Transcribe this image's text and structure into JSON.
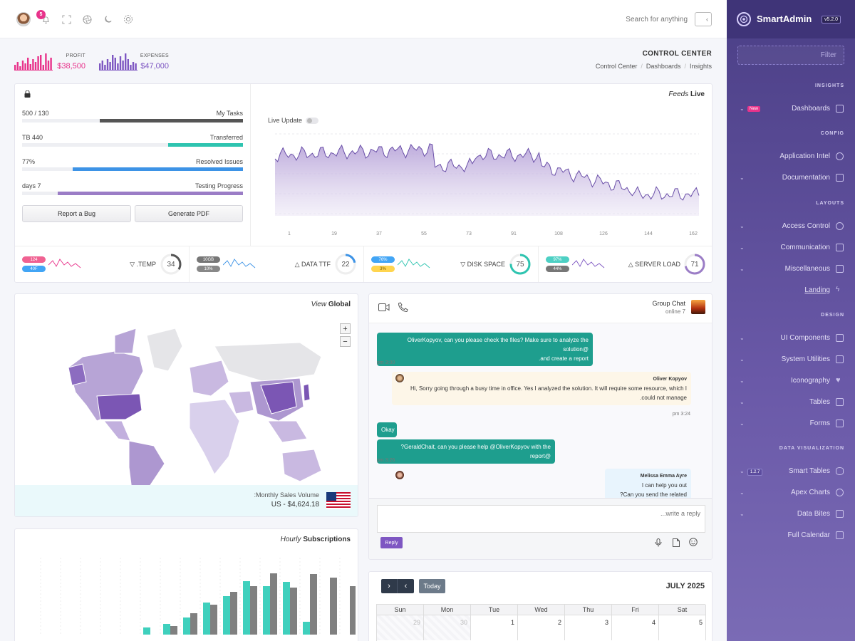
{
  "topbar": {
    "notification_count": "5",
    "search_placeholder": "Search for anything",
    "icons": [
      "bell-icon",
      "fullscreen-icon",
      "aperture-icon",
      "moon-icon",
      "gear-icon"
    ]
  },
  "header": {
    "profit": {
      "label": "PROFIT",
      "value": "$38,500",
      "color": "#e8338b"
    },
    "expenses": {
      "label": "EXPENSES",
      "value": "$47,000",
      "color": "#7e57c2"
    },
    "title": "CONTROL CENTER",
    "breadcrumbs": [
      "Control Center",
      "Dashboards",
      "Insights"
    ]
  },
  "feeds": {
    "title_italic": "Feeds",
    "title_bold": "Live",
    "live_update_label": "Live Update",
    "progress": [
      {
        "left": "500 / 130",
        "right": "My Tasks",
        "pct": 65,
        "color": "#555555"
      },
      {
        "left": "TB 440",
        "right": "Transferred",
        "pct": 34,
        "color": "#2ec4b0"
      },
      {
        "left": "77%",
        "right": "Resolved Issues",
        "pct": 77,
        "color": "#3d93e6"
      },
      {
        "left": "days 7",
        "right": "Testing Progress",
        "pct": 84,
        "color": "#9b7dc6"
      }
    ],
    "buttons": {
      "report": "Report a Bug",
      "pdf": "Generate PDF"
    },
    "x_ticks": [
      "1",
      "19",
      "37",
      "55",
      "73",
      "91",
      "108",
      "126",
      "144",
      "162"
    ]
  },
  "gauges": [
    {
      "pills": [
        {
          "text": "124",
          "color": "#f06292"
        },
        {
          "text": "40F",
          "color": "#42a5f5"
        }
      ],
      "label": ".TEMP",
      "value": "34",
      "color": "#555555",
      "spark_color": "#e8338b",
      "arrow": "▽"
    },
    {
      "pills": [
        {
          "text": "10GB",
          "color": "#777777"
        },
        {
          "text": "10%",
          "color": "#888888"
        }
      ],
      "label": "DATA TTF",
      "value": "22",
      "color": "#3d93e6",
      "spark_color": "#3d93e6",
      "arrow": "△"
    },
    {
      "pills": [
        {
          "text": "76%",
          "color": "#42a5f5"
        },
        {
          "text": "3%",
          "color": "#ffd54f"
        }
      ],
      "label": "DISK SPACE",
      "value": "75",
      "color": "#2ec4b0",
      "spark_color": "#2ec4b0",
      "arrow": "▽"
    },
    {
      "pills": [
        {
          "text": "97%",
          "color": "#4dd0c4"
        },
        {
          "text": "44%",
          "color": "#777777"
        }
      ],
      "label": "SERVER LOAD",
      "value": "71",
      "color": "#9b7dc6",
      "spark_color": "#7e57c2",
      "arrow": "△"
    }
  ],
  "map": {
    "title_italic": "View",
    "title_bold": "Global",
    "zoom_in": "+",
    "zoom_out": "−",
    "sales_label": ":Monthly Sales Volume",
    "sales_value": "US - $4,624.18"
  },
  "chat": {
    "title": "Group Chat",
    "subtitle": "online 7",
    "messages": [
      {
        "text1": "OliverKopyov, can you please check the files? Make sure to analyze the solution@",
        "text2": ".and create a report",
        "time": "pm 3:00"
      },
      {
        "name": "Oliver Kopyov",
        "text1": "Hi, Sorry going through a busy time in office. Yes I analyzed the solution. It will require some resource, which I",
        "text2": ".could not manage",
        "time": "pm 3:24"
      },
      {
        "text1": "Okay"
      },
      {
        "text1": "?GeraldChait, can you please help @OliverKopyov with the report@",
        "time": "pm 3:26"
      },
      {
        "name": "Melissa Emma Ayre",
        "text1": "I can help you out",
        "text2": "?Can you send the related files"
      }
    ],
    "reply_placeholder": "...write a reply",
    "reply_button": "Reply"
  },
  "subscriptions": {
    "title_italic": "Hourly",
    "title_bold": "Subscriptions"
  },
  "calendar": {
    "today": "Today",
    "month": "JULY 2025",
    "days": [
      "Sun",
      "Mon",
      "Tue",
      "Wed",
      "Thu",
      "Fri",
      "Sat"
    ],
    "dates": [
      "29",
      "30",
      "1",
      "2",
      "3",
      "4",
      "5"
    ]
  },
  "sidebar": {
    "brand": "SmartAdmin",
    "version": "v5.2.0",
    "filter_placeholder": "Filter",
    "sections": {
      "insights": "INSIGHTS",
      "config": "CONFIG",
      "layouts": "LAYOUTS",
      "design": "DESIGN",
      "dataviz": "DATA VISUALIZATION"
    },
    "items": {
      "dashboards": "Dashboards",
      "dashboards_tag": "New",
      "app_intel": "Application Intel",
      "documentation": "Documentation",
      "access": "Access Control",
      "communication": "Communication",
      "misc": "Miscellaneous",
      "landing": "Landing",
      "ui": "UI Components",
      "utilities": "System Utilities",
      "iconography": "Iconography",
      "tables": "Tables",
      "forms": "Forms",
      "smart_tables": "Smart Tables",
      "smart_tables_tag": "1.2.7",
      "apex": "Apex Charts",
      "databites": "Data Bites",
      "calendar": "Full Calendar"
    }
  }
}
